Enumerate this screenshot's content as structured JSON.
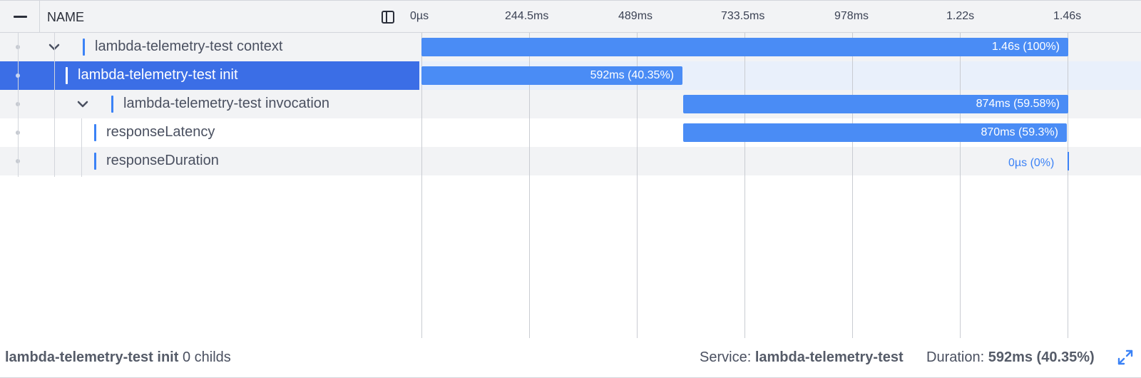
{
  "header": {
    "name_label": "NAME",
    "ticks": [
      "0µs",
      "244.5ms",
      "489ms",
      "733.5ms",
      "978ms",
      "1.22s",
      "1.46s"
    ]
  },
  "spans": [
    {
      "name": "lambda-telemetry-test context",
      "duration_label": "1.46s (100%)",
      "collapsed": false,
      "start_ms": 0,
      "duration_ms": 1460
    },
    {
      "name": "lambda-telemetry-test init",
      "duration_label": "592ms (40.35%)",
      "selected": true,
      "start_ms": 0,
      "duration_ms": 592
    },
    {
      "name": "lambda-telemetry-test invocation",
      "duration_label": "874ms (59.58%)",
      "collapsed": false,
      "start_ms": 592,
      "duration_ms": 874
    },
    {
      "name": "responseLatency",
      "duration_label": "870ms (59.3%)",
      "start_ms": 592,
      "duration_ms": 870
    },
    {
      "name": "responseDuration",
      "duration_label": "0µs (0%)",
      "start_ms": 1460,
      "duration_ms": 0
    }
  ],
  "footer": {
    "selected_name": "lambda-telemetry-test init",
    "childs_text": "0 childs",
    "service_label": "Service:",
    "service_value": "lambda-telemetry-test",
    "duration_label": "Duration:",
    "duration_value": "592ms (40.35%)"
  },
  "colors": {
    "accent": "#3b82f6",
    "selected_row": "#3b6ee6",
    "bar": "#4a8cf5"
  },
  "icons": {
    "collapse_all": "minus-icon",
    "panel_toggle": "panel-toggle-icon",
    "expand_row": "chevron-down-icon",
    "fullscreen": "expand-icon"
  }
}
